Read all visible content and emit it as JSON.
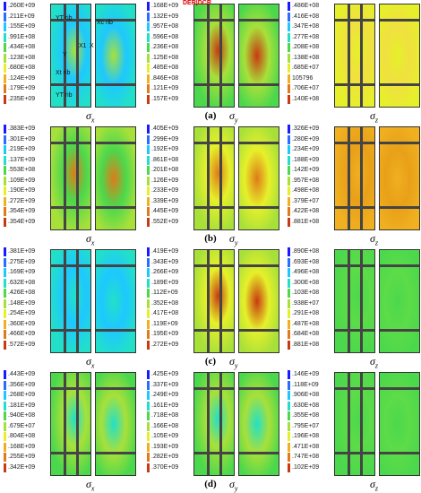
{
  "palette": [
    "#1a1aff",
    "#2a6cff",
    "#1ec8ff",
    "#22e0c8",
    "#4cd84c",
    "#a8e03a",
    "#e6f02a",
    "#f0b020",
    "#e07a1a",
    "#c83a12",
    "#7a1a0a"
  ],
  "rows": [
    {
      "label": "(a)",
      "panels": [
        {
          "sigma": "σx",
          "legend": [
            ".260E+09",
            ".211E+09",
            ".155E+09",
            ".991E+08",
            ".434E+08",
            ".123E+08",
            ".680E+08",
            ".124E+09",
            ".179E+09",
            ".235E+09"
          ],
          "base": "#22e0c8",
          "alt": "#1ec8ff",
          "hot": "#a8e03a"
        },
        {
          "sigma": "σy",
          "legend": [
            ".168E+09",
            ".132E+09",
            ".957E+08",
            ".596E+08",
            ".236E+08",
            ".125E+08",
            ".485E+08",
            ".846E+08",
            ".121E+09",
            ".157E+09"
          ],
          "base": "#4cd84c",
          "alt": "#a8e03a",
          "hot": "#c83a12"
        },
        {
          "sigma": "σz",
          "legend": [
            ".486E+08",
            ".416E+08",
            ".347E+08",
            ".277E+08",
            ".208E+08",
            ".138E+08",
            ".685E+07",
            "105796",
            ".706E+07",
            ".140E+08"
          ],
          "base": "#e6f02a",
          "alt": "#f0e040",
          "hot": "#e6f02a"
        }
      ]
    },
    {
      "label": "(b)",
      "panels": [
        {
          "sigma": "σx",
          "legend": [
            ".383E+09",
            ".301E+09",
            ".219E+09",
            ".137E+09",
            ".553E+08",
            ".109E+09",
            ".190E+09",
            ".272E+09",
            ".354E+09",
            ".354E+09"
          ],
          "base": "#a8e03a",
          "alt": "#4cd84c",
          "hot": "#e07a1a"
        },
        {
          "sigma": "σy",
          "legend": [
            ".405E+09",
            ".299E+09",
            ".192E+09",
            ".861E+08",
            ".201E+08",
            ".126E+09",
            ".233E+09",
            ".339E+09",
            ".445E+09",
            ".552E+09"
          ],
          "base": "#a8e03a",
          "alt": "#e6f02a",
          "hot": "#e07a1a"
        },
        {
          "sigma": "σz",
          "legend": [
            ".326E+09",
            ".280E+09",
            ".234E+09",
            ".188E+09",
            ".142E+09",
            ".957E+08",
            ".498E+08",
            ".379E+07",
            ".422E+08",
            ".881E+08"
          ],
          "base": "#f0b020",
          "alt": "#e8a018",
          "hot": "#f0b020"
        }
      ]
    },
    {
      "label": "(c)",
      "panels": [
        {
          "sigma": "σx",
          "legend": [
            ".381E+09",
            ".275E+09",
            ".169E+09",
            ".632E+08",
            ".426E+08",
            ".148E+09",
            ".254E+09",
            ".360E+09",
            ".466E+09",
            ".572E+09"
          ],
          "base": "#22e0c8",
          "alt": "#1ec8ff",
          "hot": "#22e0c8"
        },
        {
          "sigma": "σy",
          "legend": [
            ".419E+09",
            ".343E+09",
            ".266E+09",
            ".189E+09",
            ".112E+09",
            ".352E+08",
            ".417E+08",
            ".119E+09",
            ".195E+09",
            ".272E+09"
          ],
          "base": "#a8e03a",
          "alt": "#e6f02a",
          "hot": "#c83a12"
        },
        {
          "sigma": "σz",
          "legend": [
            ".890E+08",
            ".693E+08",
            ".496E+08",
            ".300E+08",
            ".103E+08",
            ".938E+07",
            ".291E+08",
            ".487E+08",
            ".684E+08",
            ".881E+08"
          ],
          "base": "#4cd84c",
          "alt": "#5cdc48",
          "hot": "#4cd84c"
        }
      ]
    },
    {
      "label": "(d)",
      "panels": [
        {
          "sigma": "σx",
          "legend": [
            ".443E+09",
            ".356E+09",
            ".268E+09",
            ".181E+09",
            ".940E+08",
            ".679E+07",
            ".804E+08",
            ".168E+09",
            ".255E+09",
            ".342E+09"
          ],
          "base": "#4cd84c",
          "alt": "#a8e03a",
          "hot": "#22e0c8"
        },
        {
          "sigma": "σy",
          "legend": [
            ".425E+09",
            ".337E+09",
            ".249E+09",
            ".161E+09",
            ".718E+08",
            ".166E+08",
            ".105E+09",
            ".193E+09",
            ".282E+09",
            ".370E+09"
          ],
          "base": "#4cd84c",
          "alt": "#a8e03a",
          "hot": "#22e0c8"
        },
        {
          "sigma": "σz",
          "legend": [
            ".146E+09",
            ".118E+09",
            ".906E+08",
            ".630E+08",
            ".355E+08",
            ".795E+07",
            ".196E+08",
            ".471E+08",
            ".747E+08",
            ".102E+09"
          ],
          "base": "#4cd84c",
          "alt": "#5cdc48",
          "hot": "#4cd84c"
        }
      ]
    }
  ],
  "annotations": {
    "top": "DER|DCR",
    "yt_rib": "YT rib",
    "xc_rib": "Xc rib",
    "x1": "X1",
    "x": "X",
    "y": "Y",
    "xt_rib": "Xt rib",
    "yt_rib_bottom": "YT rib"
  }
}
